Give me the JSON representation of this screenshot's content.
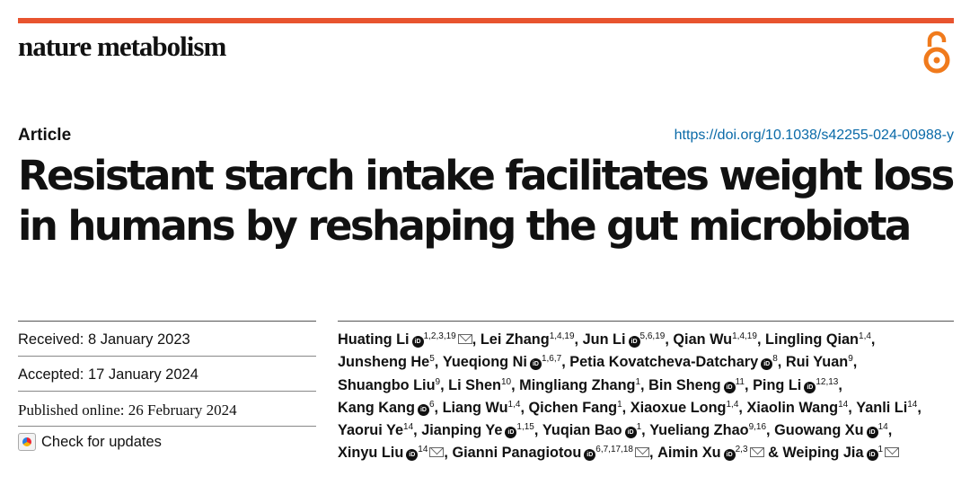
{
  "header": {
    "journal": "nature metabolism",
    "open_access_icon": "open-access-lock-icon"
  },
  "article": {
    "type": "Article",
    "doi": "https://doi.org/10.1038/s42255-024-00988-y",
    "title": "Resistant starch intake facilitates weight loss in humans by reshaping the gut microbiota"
  },
  "dates": {
    "received": "Received: 8 January 2023",
    "accepted": "Accepted: 17 January 2024",
    "published": "Published online: 26 February 2024",
    "check_updates": "Check for updates"
  },
  "authors": [
    {
      "name": "Huating Li",
      "orcid": true,
      "aff": "1,2,3,19",
      "mail": true,
      "sep": ", "
    },
    {
      "name": "Lei Zhang",
      "orcid": false,
      "aff": "1,4,19",
      "mail": false,
      "sep": ", "
    },
    {
      "name": "Jun Li",
      "orcid": true,
      "aff": "5,6,19",
      "mail": false,
      "sep": ", "
    },
    {
      "name": "Qian Wu",
      "orcid": false,
      "aff": "1,4,19",
      "mail": false,
      "sep": ", "
    },
    {
      "name": "Lingling Qian",
      "orcid": false,
      "aff": "1,4",
      "mail": false,
      "sep": ", "
    },
    {
      "name": "Junsheng He",
      "orcid": false,
      "aff": "5",
      "mail": false,
      "sep": ", "
    },
    {
      "name": "Yueqiong Ni",
      "orcid": true,
      "aff": "1,6,7",
      "mail": false,
      "sep": ", "
    },
    {
      "name": "Petia Kovatcheva-Datchary",
      "orcid": true,
      "aff": "8",
      "mail": false,
      "sep": ", "
    },
    {
      "name": "Rui Yuan",
      "orcid": false,
      "aff": "9",
      "mail": false,
      "sep": ", "
    },
    {
      "name": "Shuangbo Liu",
      "orcid": false,
      "aff": "9",
      "mail": false,
      "sep": ", "
    },
    {
      "name": "Li Shen",
      "orcid": false,
      "aff": "10",
      "mail": false,
      "sep": ", "
    },
    {
      "name": "Mingliang Zhang",
      "orcid": false,
      "aff": "1",
      "mail": false,
      "sep": ", "
    },
    {
      "name": "Bin Sheng",
      "orcid": true,
      "aff": "11",
      "mail": false,
      "sep": ", "
    },
    {
      "name": "Ping Li",
      "orcid": true,
      "aff": "12,13",
      "mail": false,
      "sep": ", "
    },
    {
      "name": "Kang Kang",
      "orcid": true,
      "aff": "6",
      "mail": false,
      "sep": ", "
    },
    {
      "name": "Liang Wu",
      "orcid": false,
      "aff": "1,4",
      "mail": false,
      "sep": ", "
    },
    {
      "name": "Qichen Fang",
      "orcid": false,
      "aff": "1",
      "mail": false,
      "sep": ", "
    },
    {
      "name": "Xiaoxue Long",
      "orcid": false,
      "aff": "1,4",
      "mail": false,
      "sep": ", "
    },
    {
      "name": "Xiaolin Wang",
      "orcid": false,
      "aff": "14",
      "mail": false,
      "sep": ", "
    },
    {
      "name": "Yanli Li",
      "orcid": false,
      "aff": "14",
      "mail": false,
      "sep": ", "
    },
    {
      "name": "Yaorui Ye",
      "orcid": false,
      "aff": "14",
      "mail": false,
      "sep": ", "
    },
    {
      "name": "Jianping Ye",
      "orcid": true,
      "aff": "1,15",
      "mail": false,
      "sep": ", "
    },
    {
      "name": "Yuqian Bao",
      "orcid": true,
      "aff": "1",
      "mail": false,
      "sep": ", "
    },
    {
      "name": "Yueliang Zhao",
      "orcid": false,
      "aff": "9,16",
      "mail": false,
      "sep": ", "
    },
    {
      "name": "Guowang Xu",
      "orcid": true,
      "aff": "14",
      "mail": false,
      "sep": ", "
    },
    {
      "name": "Xinyu Liu",
      "orcid": true,
      "aff": "14",
      "mail": true,
      "sep": ", "
    },
    {
      "name": "Gianni Panagiotou",
      "orcid": true,
      "aff": "6,7,17,18",
      "mail": true,
      "sep": ", "
    },
    {
      "name": "Aimin Xu",
      "orcid": true,
      "aff": "2,3",
      "mail": true,
      "sep": " "
    },
    {
      "name": "& Weiping Jia",
      "orcid": true,
      "aff": "1",
      "mail": true,
      "sep": ""
    }
  ]
}
